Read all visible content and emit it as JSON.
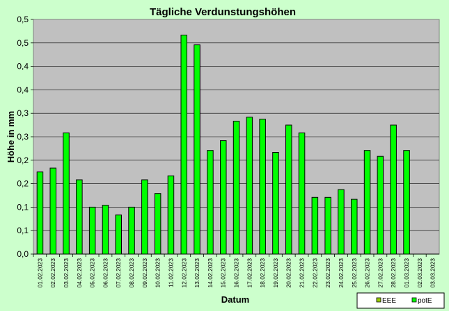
{
  "chart_data": {
    "type": "bar",
    "title": "Tägliche Verdunstungshöhen",
    "xlabel": "Datum",
    "ylabel": "Höhe in mm",
    "ylim": [
      0,
      0.6
    ],
    "ytick_labels": [
      "0,0",
      "0,1",
      "0,1",
      "0,2",
      "0,2",
      "0,3",
      "0,3",
      "0,4",
      "0,4",
      "0,5",
      "0,5"
    ],
    "grid": true,
    "legend_position": "bottom-right",
    "categories": [
      "01.02.2023",
      "02.02.2023",
      "03.02.2023",
      "04.02.2023",
      "05.02.2023",
      "06.02.2023",
      "07.02.2023",
      "08.02.2023",
      "09.02.2023",
      "10.02.2023",
      "11.02.2023",
      "12.02.2023",
      "13.02.2023",
      "14.02.2023",
      "15.02.2023",
      "16.02.2023",
      "17.02.2023",
      "18.02.2023",
      "19.02.2023",
      "20.02.2023",
      "21.02.2023",
      "22.02.2023",
      "23.02.2023",
      "24.02.2023",
      "25.02.2023",
      "26.02.2023",
      "27.02.2023",
      "28.02.2023",
      "01.03.2023",
      "02.03.2023",
      "03.03.2023"
    ],
    "series": [
      {
        "name": "EEE",
        "color": "#99cc00",
        "values": [
          null,
          null,
          null,
          null,
          null,
          null,
          null,
          null,
          null,
          null,
          null,
          null,
          null,
          null,
          null,
          null,
          null,
          null,
          null,
          null,
          null,
          null,
          null,
          null,
          null,
          null,
          null,
          null,
          null,
          null,
          null
        ]
      },
      {
        "name": "potE",
        "color": "#00ff00",
        "values": [
          0.21,
          0.22,
          0.31,
          0.19,
          0.12,
          0.125,
          0.1,
          0.12,
          0.19,
          0.155,
          0.2,
          0.56,
          0.535,
          0.265,
          0.29,
          0.34,
          0.35,
          0.345,
          0.26,
          0.33,
          0.31,
          0.145,
          0.145,
          0.165,
          0.14,
          0.265,
          0.25,
          0.33,
          0.265,
          null,
          null
        ]
      }
    ],
    "colors": {
      "plot_background": "#c0c0c0",
      "page_background": "#ccffcc",
      "bar_stroke": "#000000"
    }
  }
}
